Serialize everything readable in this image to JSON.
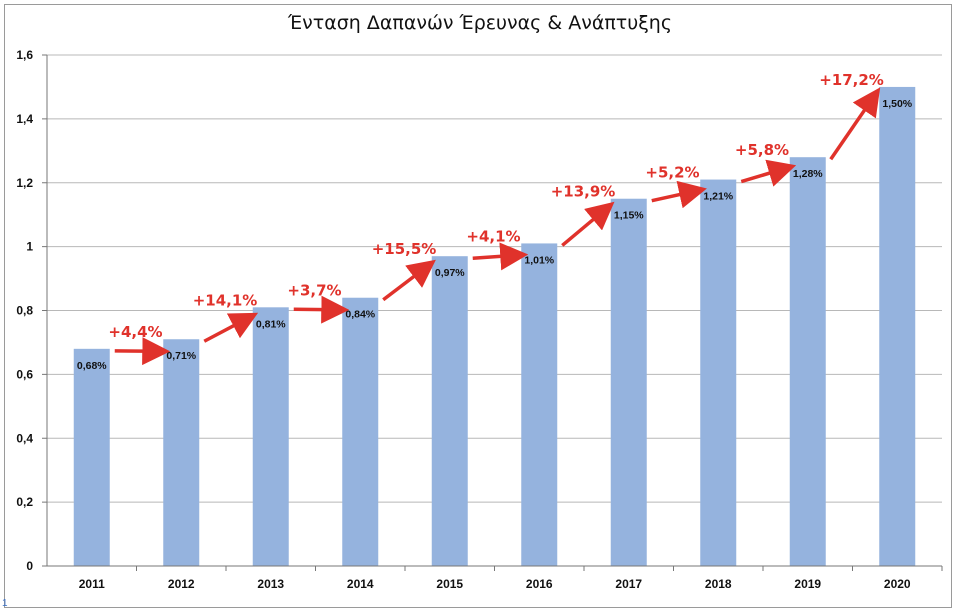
{
  "chart_data": {
    "type": "bar",
    "title": "Ένταση Δαπανών Έρευνας & Ανάπτυξης",
    "xlabel": "",
    "ylabel": "",
    "categories": [
      "2011",
      "2012",
      "2013",
      "2014",
      "2015",
      "2016",
      "2017",
      "2018",
      "2019",
      "2020"
    ],
    "values": [
      0.68,
      0.71,
      0.81,
      0.84,
      0.97,
      1.01,
      1.15,
      1.21,
      1.28,
      1.5
    ],
    "data_labels": [
      "0,68%",
      "0,71%",
      "0,81%",
      "0,84%",
      "0,97%",
      "1,01%",
      "1,15%",
      "1,21%",
      "1,28%",
      "1,50%"
    ],
    "growth_annotations": [
      "+4,4%",
      "+14,1%",
      "+3,7%",
      "+15,5%",
      "+4,1%",
      "+13,9%",
      "+5,2%",
      "+5,8%",
      "+17,2%"
    ],
    "y_ticks": [
      "0",
      "0,2",
      "0,4",
      "0,6",
      "0,8",
      "1",
      "1,2",
      "1,4",
      "1,6"
    ],
    "ylim": [
      0,
      1.6
    ],
    "grid": true,
    "legend": "none",
    "bar_color": "#95b3de",
    "annotation_color": "#e0322b"
  },
  "page_number": "1"
}
